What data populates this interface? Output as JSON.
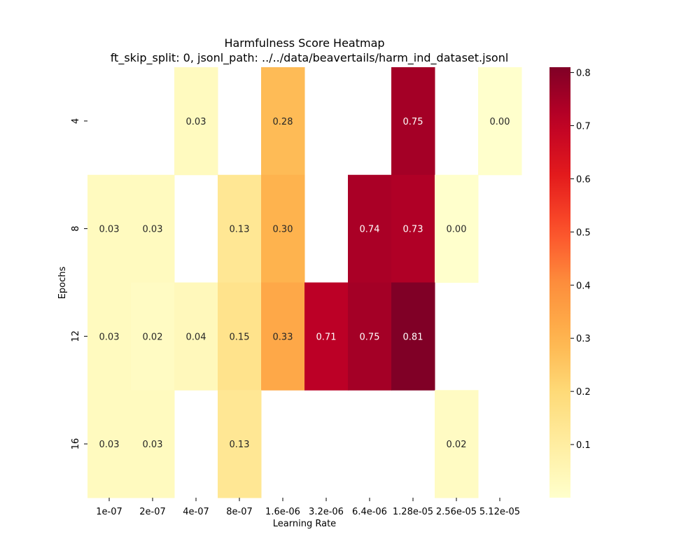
{
  "chart_data": {
    "type": "heatmap",
    "title": "Harmfulness Score Heatmap",
    "subtitle": "ft_skip_split: 0, jsonl_path: ../../data/beavertails/harm_ind_dataset.jsonl",
    "xlabel": "Learning Rate",
    "ylabel": "Epochs",
    "x_categories": [
      "1e-07",
      "2e-07",
      "4e-07",
      "8e-07",
      "1.6e-06",
      "3.2e-06",
      "6.4e-06",
      "1.28e-05",
      "2.56e-05",
      "5.12e-05"
    ],
    "y_categories": [
      "4",
      "8",
      "12",
      "16"
    ],
    "values": [
      [
        null,
        null,
        0.03,
        null,
        0.28,
        null,
        null,
        0.75,
        null,
        0.0
      ],
      [
        0.03,
        0.03,
        null,
        0.13,
        0.3,
        null,
        0.74,
        0.73,
        0.0,
        null
      ],
      [
        0.03,
        0.02,
        0.04,
        0.15,
        0.33,
        0.71,
        0.75,
        0.81,
        null,
        null
      ],
      [
        0.03,
        0.03,
        null,
        0.13,
        null,
        null,
        null,
        null,
        0.02,
        null
      ]
    ],
    "colormap": "YlOrRd",
    "color_range": [
      0.0,
      0.81
    ],
    "colorbar_ticks": [
      "0.1",
      "0.2",
      "0.3",
      "0.4",
      "0.5",
      "0.6",
      "0.7",
      "0.8"
    ],
    "grid": false,
    "colorbar": "right"
  }
}
